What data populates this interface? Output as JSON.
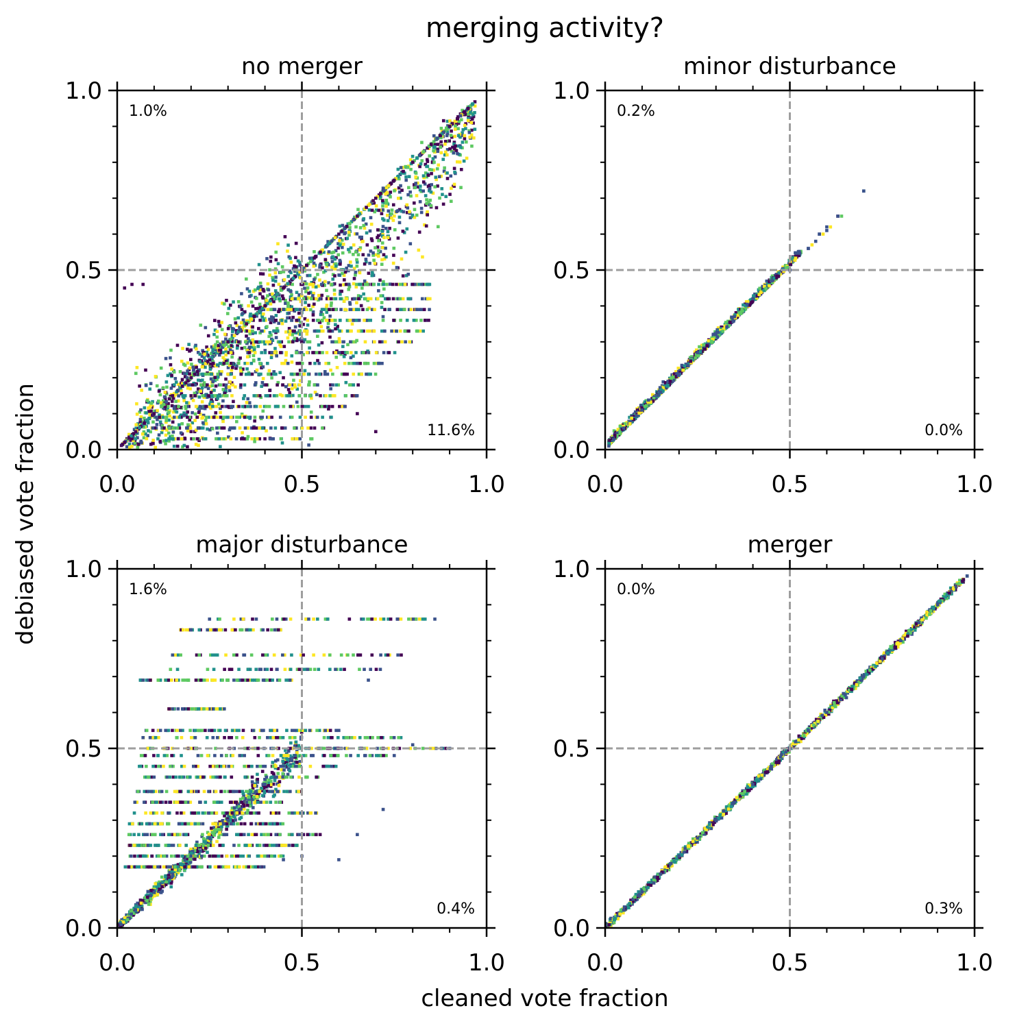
{
  "figure": {
    "title": "merging activity?",
    "xlabel": "cleaned vote fraction",
    "ylabel": "debiased vote fraction",
    "colormap": [
      "#440154",
      "#3b528b",
      "#21918c",
      "#5ec962",
      "#fde725"
    ],
    "guide_color": "#9e9e9e"
  },
  "chart_data": [
    {
      "type": "scatter",
      "title": "no merger",
      "xlim": [
        0,
        1
      ],
      "ylim": [
        0,
        1
      ],
      "xticks": [
        "0.0",
        "0.5",
        "1.0"
      ],
      "yticks": [
        "0.0",
        "0.5",
        "1.0"
      ],
      "guide_lines": {
        "x": 0.5,
        "y": 0.5
      },
      "annotations": {
        "top_left": "1.0%",
        "bottom_right": "11.6%"
      },
      "pattern": "diagonal band with horizontal streaks below diagonal, spread widest at mid values",
      "points": [
        [
          0.02,
          0.02
        ],
        [
          0.05,
          0.05
        ],
        [
          0.1,
          0.1
        ],
        [
          0.15,
          0.15
        ],
        [
          0.2,
          0.2
        ],
        [
          0.25,
          0.25
        ],
        [
          0.3,
          0.3
        ],
        [
          0.35,
          0.35
        ],
        [
          0.4,
          0.4
        ],
        [
          0.45,
          0.45
        ],
        [
          0.5,
          0.5
        ],
        [
          0.55,
          0.55
        ],
        [
          0.6,
          0.6
        ],
        [
          0.65,
          0.65
        ],
        [
          0.7,
          0.7
        ],
        [
          0.75,
          0.75
        ],
        [
          0.8,
          0.8
        ],
        [
          0.85,
          0.85
        ],
        [
          0.9,
          0.9
        ],
        [
          0.95,
          0.95
        ],
        [
          0.02,
          0.45
        ],
        [
          0.04,
          0.46
        ],
        [
          0.07,
          0.46
        ],
        [
          0.3,
          0.12
        ],
        [
          0.45,
          0.2
        ],
        [
          0.55,
          0.15
        ],
        [
          0.65,
          0.1
        ],
        [
          0.7,
          0.05
        ],
        [
          0.2,
          0.05
        ],
        [
          0.4,
          0.03
        ]
      ]
    },
    {
      "type": "scatter",
      "title": "minor disturbance",
      "xlim": [
        0,
        1
      ],
      "ylim": [
        0,
        1
      ],
      "xticks": [
        "0.0",
        "0.5",
        "1.0"
      ],
      "yticks": [
        "0.0",
        "0.5",
        "1.0"
      ],
      "guide_lines": {
        "x": 0.5,
        "y": 0.5
      },
      "annotations": {
        "top_left": "0.2%",
        "bottom_right": "0.0%"
      },
      "pattern": "tight band along y slightly above x, ends near x=0.7",
      "points": [
        [
          0.01,
          0.01
        ],
        [
          0.05,
          0.06
        ],
        [
          0.1,
          0.11
        ],
        [
          0.15,
          0.16
        ],
        [
          0.2,
          0.21
        ],
        [
          0.25,
          0.27
        ],
        [
          0.3,
          0.32
        ],
        [
          0.35,
          0.37
        ],
        [
          0.4,
          0.42
        ],
        [
          0.45,
          0.47
        ],
        [
          0.5,
          0.5
        ],
        [
          0.55,
          0.56
        ],
        [
          0.58,
          0.6
        ],
        [
          0.6,
          0.62
        ],
        [
          0.63,
          0.65
        ],
        [
          0.7,
          0.72
        ]
      ]
    },
    {
      "type": "scatter",
      "title": "major disturbance",
      "xlim": [
        0,
        1
      ],
      "ylim": [
        0,
        1
      ],
      "xticks": [
        "0.0",
        "0.5",
        "1.0"
      ],
      "yticks": [
        "0.0",
        "0.5",
        "1.0"
      ],
      "guide_lines": {
        "x": 0.5,
        "y": 0.5
      },
      "annotations": {
        "top_left": "1.6%",
        "bottom_right": "0.4%"
      },
      "pattern": "dense cluster near origin with horizontal streaks at fixed y levels",
      "points": [
        [
          0.01,
          0.01
        ],
        [
          0.05,
          0.05
        ],
        [
          0.1,
          0.1
        ],
        [
          0.15,
          0.15
        ],
        [
          0.2,
          0.2
        ],
        [
          0.25,
          0.25
        ],
        [
          0.3,
          0.3
        ],
        [
          0.35,
          0.35
        ],
        [
          0.4,
          0.4
        ],
        [
          0.45,
          0.45
        ],
        [
          0.25,
          0.86
        ],
        [
          0.86,
          0.86
        ],
        [
          0.2,
          0.83
        ],
        [
          0.15,
          0.76
        ],
        [
          0.76,
          0.76
        ],
        [
          0.07,
          0.69
        ],
        [
          0.68,
          0.69
        ],
        [
          0.15,
          0.61
        ],
        [
          0.29,
          0.61
        ],
        [
          0.6,
          0.55
        ],
        [
          0.07,
          0.53
        ],
        [
          0.8,
          0.51
        ],
        [
          0.9,
          0.5
        ],
        [
          0.75,
          0.48
        ],
        [
          0.72,
          0.33
        ],
        [
          0.65,
          0.26
        ],
        [
          0.5,
          0.26
        ],
        [
          0.6,
          0.19
        ],
        [
          0.45,
          0.19
        ],
        [
          0.5,
          0.2
        ]
      ]
    },
    {
      "type": "scatter",
      "title": "merger",
      "xlim": [
        0,
        1
      ],
      "ylim": [
        0,
        1
      ],
      "xticks": [
        "0.0",
        "0.5",
        "1.0"
      ],
      "yticks": [
        "0.0",
        "0.5",
        "1.0"
      ],
      "guide_lines": {
        "x": 0.5,
        "y": 0.5
      },
      "annotations": {
        "top_left": "0.0%",
        "bottom_right": "0.3%"
      },
      "pattern": "very tight band along the diagonal y = x",
      "points": [
        [
          0.0,
          0.0
        ],
        [
          0.05,
          0.05
        ],
        [
          0.1,
          0.1
        ],
        [
          0.15,
          0.15
        ],
        [
          0.2,
          0.2
        ],
        [
          0.25,
          0.25
        ],
        [
          0.3,
          0.3
        ],
        [
          0.35,
          0.35
        ],
        [
          0.4,
          0.4
        ],
        [
          0.45,
          0.45
        ],
        [
          0.5,
          0.5
        ],
        [
          0.55,
          0.55
        ],
        [
          0.6,
          0.6
        ],
        [
          0.65,
          0.65
        ],
        [
          0.7,
          0.7
        ],
        [
          0.75,
          0.75
        ],
        [
          0.8,
          0.8
        ],
        [
          0.85,
          0.85
        ],
        [
          0.9,
          0.9
        ],
        [
          0.95,
          0.95
        ],
        [
          0.98,
          0.98
        ]
      ]
    }
  ]
}
